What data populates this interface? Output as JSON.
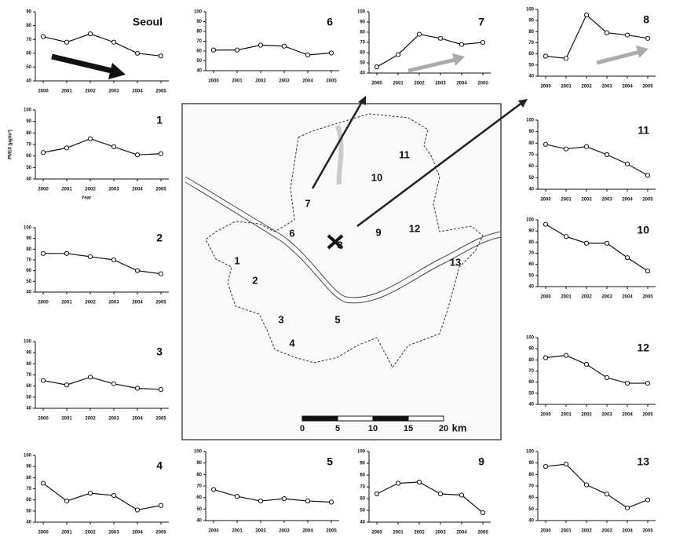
{
  "chart_data": [
    {
      "type": "line",
      "title": "Seoul",
      "categories": [
        "2000",
        "2001",
        "2002",
        "2003",
        "2004",
        "2005"
      ],
      "values": [
        72,
        68,
        74,
        68,
        60,
        58
      ],
      "ylim": [
        40,
        90
      ],
      "yticks": [
        40,
        50,
        60,
        70,
        80,
        90
      ]
    },
    {
      "type": "line",
      "title": "6",
      "categories": [
        "2000",
        "2001",
        "2002",
        "2003",
        "2004",
        "2005"
      ],
      "values": [
        61,
        61,
        66,
        65,
        56,
        58
      ],
      "ylim": [
        40,
        100
      ],
      "yticks": [
        40,
        50,
        60,
        70,
        80,
        90,
        100
      ]
    },
    {
      "type": "line",
      "title": "7",
      "categories": [
        "2000",
        "2001",
        "2002",
        "2003",
        "2004",
        "2005"
      ],
      "values": [
        46,
        58,
        78,
        74,
        68,
        70
      ],
      "ylim": [
        40,
        100
      ],
      "yticks": [
        40,
        50,
        60,
        70,
        80,
        90,
        100
      ]
    },
    {
      "type": "line",
      "title": "8",
      "categories": [
        "2000",
        "2001",
        "2002",
        "2003",
        "2004",
        "2005"
      ],
      "values": [
        58,
        56,
        95,
        79,
        77,
        74
      ],
      "ylim": [
        40,
        100
      ],
      "yticks": [
        40,
        50,
        60,
        70,
        80,
        90,
        100
      ]
    },
    {
      "type": "line",
      "title": "1",
      "categories": [
        "2000",
        "2001",
        "2002",
        "2003",
        "2004",
        "2005"
      ],
      "values": [
        63,
        67,
        75,
        68,
        61,
        62
      ],
      "ylim": [
        40,
        100
      ],
      "yticks": [
        40,
        50,
        60,
        70,
        80,
        90,
        100
      ],
      "y_label": "PM10 (μg/m³)",
      "x_label": "Year"
    },
    {
      "type": "line",
      "title": "11",
      "categories": [
        "2000",
        "2001",
        "2002",
        "2003",
        "2004",
        "2005"
      ],
      "values": [
        79,
        75,
        77,
        70,
        62,
        52
      ],
      "ylim": [
        40,
        100
      ],
      "yticks": [
        40,
        50,
        60,
        70,
        80,
        90,
        100
      ]
    },
    {
      "type": "line",
      "title": "2",
      "categories": [
        "2000",
        "2001",
        "2002",
        "2003",
        "2004",
        "2005"
      ],
      "values": [
        76,
        76,
        73,
        70,
        60,
        57
      ],
      "ylim": [
        40,
        100
      ],
      "yticks": [
        40,
        50,
        60,
        70,
        80,
        90,
        100
      ]
    },
    {
      "type": "line",
      "title": "10",
      "categories": [
        "2000",
        "2001",
        "2002",
        "2003",
        "2004",
        "2005"
      ],
      "values": [
        96,
        85,
        79,
        79,
        66,
        54
      ],
      "ylim": [
        40,
        100
      ],
      "yticks": [
        40,
        50,
        60,
        70,
        80,
        90,
        100
      ]
    },
    {
      "type": "line",
      "title": "3",
      "categories": [
        "2000",
        "2001",
        "2002",
        "2003",
        "2004",
        "2005"
      ],
      "values": [
        65,
        61,
        68,
        62,
        58,
        57
      ],
      "ylim": [
        40,
        100
      ],
      "yticks": [
        40,
        50,
        60,
        70,
        80,
        90,
        100
      ]
    },
    {
      "type": "line",
      "title": "12",
      "categories": [
        "2000",
        "2001",
        "2002",
        "2003",
        "2004",
        "2005"
      ],
      "values": [
        82,
        84,
        76,
        64,
        59,
        59
      ],
      "ylim": [
        40,
        100
      ],
      "yticks": [
        40,
        50,
        60,
        70,
        80,
        90,
        100
      ]
    },
    {
      "type": "line",
      "title": "4",
      "categories": [
        "2000",
        "2001",
        "2002",
        "2003",
        "2004",
        "2005"
      ],
      "values": [
        75,
        59,
        66,
        64,
        51,
        55
      ],
      "ylim": [
        40,
        100
      ],
      "yticks": [
        40,
        50,
        60,
        70,
        80,
        90,
        100
      ]
    },
    {
      "type": "line",
      "title": "5",
      "categories": [
        "2000",
        "2001",
        "2002",
        "2003",
        "2004",
        "2005"
      ],
      "values": [
        67,
        61,
        57,
        59,
        57,
        56
      ],
      "ylim": [
        40,
        100
      ],
      "yticks": [
        40,
        50,
        60,
        70,
        80,
        90,
        100
      ]
    },
    {
      "type": "line",
      "title": "9",
      "categories": [
        "2000",
        "2001",
        "2002",
        "2003",
        "2004",
        "2005"
      ],
      "values": [
        64,
        73,
        74,
        64,
        63,
        48
      ],
      "ylim": [
        40,
        100
      ],
      "yticks": [
        40,
        50,
        60,
        70,
        80,
        90,
        100
      ]
    },
    {
      "type": "line",
      "title": "13",
      "categories": [
        "2000",
        "2001",
        "2002",
        "2003",
        "2004",
        "2005"
      ],
      "values": [
        87,
        89,
        71,
        63,
        51,
        58
      ],
      "ylim": [
        40,
        100
      ],
      "yticks": [
        40,
        50,
        60,
        70,
        80,
        90,
        100
      ]
    }
  ],
  "map": {
    "region_labels": [
      "1",
      "2",
      "3",
      "4",
      "5",
      "6",
      "7",
      "8",
      "9",
      "10",
      "11",
      "12",
      "13"
    ],
    "scale_ticks": [
      0,
      5,
      10,
      15,
      20
    ],
    "scale_unit": "km"
  }
}
